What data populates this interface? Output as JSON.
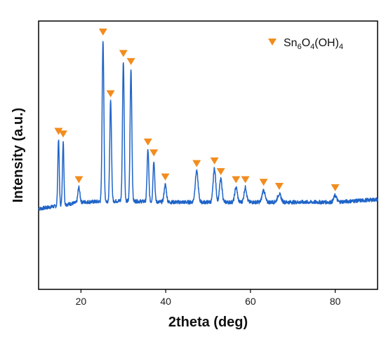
{
  "chart_data": {
    "type": "line",
    "xlabel": "2theta (deg)",
    "ylabel": "Intensity (a.u.)",
    "xlim": [
      10,
      90
    ],
    "x_ticks": [
      20,
      40,
      60,
      80
    ],
    "y_ticks_labeled": false,
    "ylim": [
      0,
      100
    ],
    "grid": false,
    "legend": {
      "position": "top-right",
      "marker": "inverted-triangle",
      "label_parts": [
        {
          "text": "Sn",
          "sub": false
        },
        {
          "text": "6",
          "sub": true
        },
        {
          "text": "O",
          "sub": false
        },
        {
          "text": "4",
          "sub": true
        },
        {
          "text": "(OH)",
          "sub": false
        },
        {
          "text": "4",
          "sub": true
        }
      ]
    },
    "series": [
      {
        "name": "Sn6O4(OH)4",
        "color": "#1f64c8",
        "baseline": [
          [
            10,
            30
          ],
          [
            20,
            32.5
          ],
          [
            30,
            33
          ],
          [
            40,
            32.5
          ],
          [
            50,
            32.5
          ],
          [
            60,
            32.5
          ],
          [
            70,
            32.5
          ],
          [
            80,
            32.5
          ],
          [
            90,
            33.5
          ]
        ],
        "peaks": [
          {
            "x": 14.7,
            "y": 56,
            "w": 0.25
          },
          {
            "x": 15.8,
            "y": 55,
            "w": 0.25
          },
          {
            "x": 19.5,
            "y": 38,
            "w": 0.35
          },
          {
            "x": 25.2,
            "y": 93,
            "w": 0.3
          },
          {
            "x": 27.0,
            "y": 70,
            "w": 0.3
          },
          {
            "x": 30.0,
            "y": 85,
            "w": 0.3
          },
          {
            "x": 31.8,
            "y": 82,
            "w": 0.3
          },
          {
            "x": 35.8,
            "y": 52,
            "w": 0.3
          },
          {
            "x": 37.2,
            "y": 48,
            "w": 0.3
          },
          {
            "x": 39.9,
            "y": 39,
            "w": 0.4
          },
          {
            "x": 47.3,
            "y": 44,
            "w": 0.5
          },
          {
            "x": 51.5,
            "y": 45,
            "w": 0.45
          },
          {
            "x": 53.0,
            "y": 41,
            "w": 0.45
          },
          {
            "x": 56.6,
            "y": 38,
            "w": 0.45
          },
          {
            "x": 58.8,
            "y": 38,
            "w": 0.45
          },
          {
            "x": 63.1,
            "y": 37,
            "w": 0.5
          },
          {
            "x": 66.8,
            "y": 35.5,
            "w": 0.6
          },
          {
            "x": 80.0,
            "y": 35,
            "w": 0.5
          }
        ]
      }
    ],
    "peak_markers": {
      "color": "#f28c1e",
      "x": [
        14.7,
        15.8,
        19.5,
        25.2,
        27.0,
        30.0,
        31.8,
        35.8,
        37.2,
        39.9,
        47.3,
        51.5,
        53.0,
        56.6,
        58.8,
        63.1,
        66.8,
        80.0
      ]
    }
  }
}
